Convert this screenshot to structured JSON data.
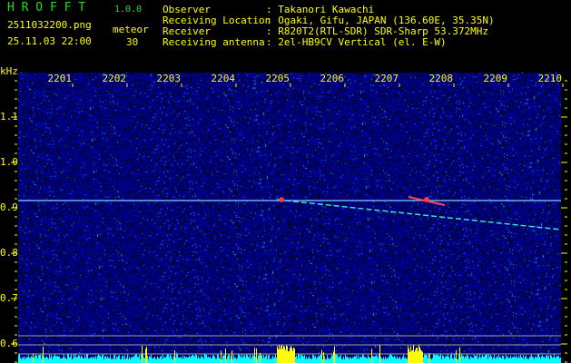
{
  "app": {
    "title": "H R O F F T",
    "version": "1.0.0"
  },
  "file": {
    "name": "2511032200.png",
    "datetime": "25.11.03 22:00"
  },
  "meteor": {
    "label": "meteor",
    "count": "30"
  },
  "info": [
    {
      "label": "Observer",
      "value": ": Takanori Kawachi"
    },
    {
      "label": "Receiving Location",
      "value": ": Ogaki, Gifu, JAPAN (136.60E, 35.35N)"
    },
    {
      "label": "Receiver",
      "value": ": R820T2(RTL-SDR) SDR-Sharp 53.372MHz"
    },
    {
      "label": "Receiving antenna",
      "value": ": 2el-HB9CV Vertical (el. E-W)"
    }
  ],
  "axis": {
    "y_unit": "kHz",
    "x_ticks": [
      "2201",
      "2202",
      "2203",
      "2204",
      "2205",
      "2206",
      "2207",
      "2208",
      "2209",
      "2210"
    ],
    "y_ticks": [
      "1.1",
      "1.0",
      "0.9",
      "0.8",
      "0.7",
      "0.6"
    ]
  },
  "colors": {
    "background": "#000000",
    "noise": "#1a1aa0",
    "text": "#ffff00",
    "title": "#22dd22",
    "level_bar": "#00ffff",
    "detect_bar": "#ffff00",
    "guide_line": "#a0a0a0"
  }
}
